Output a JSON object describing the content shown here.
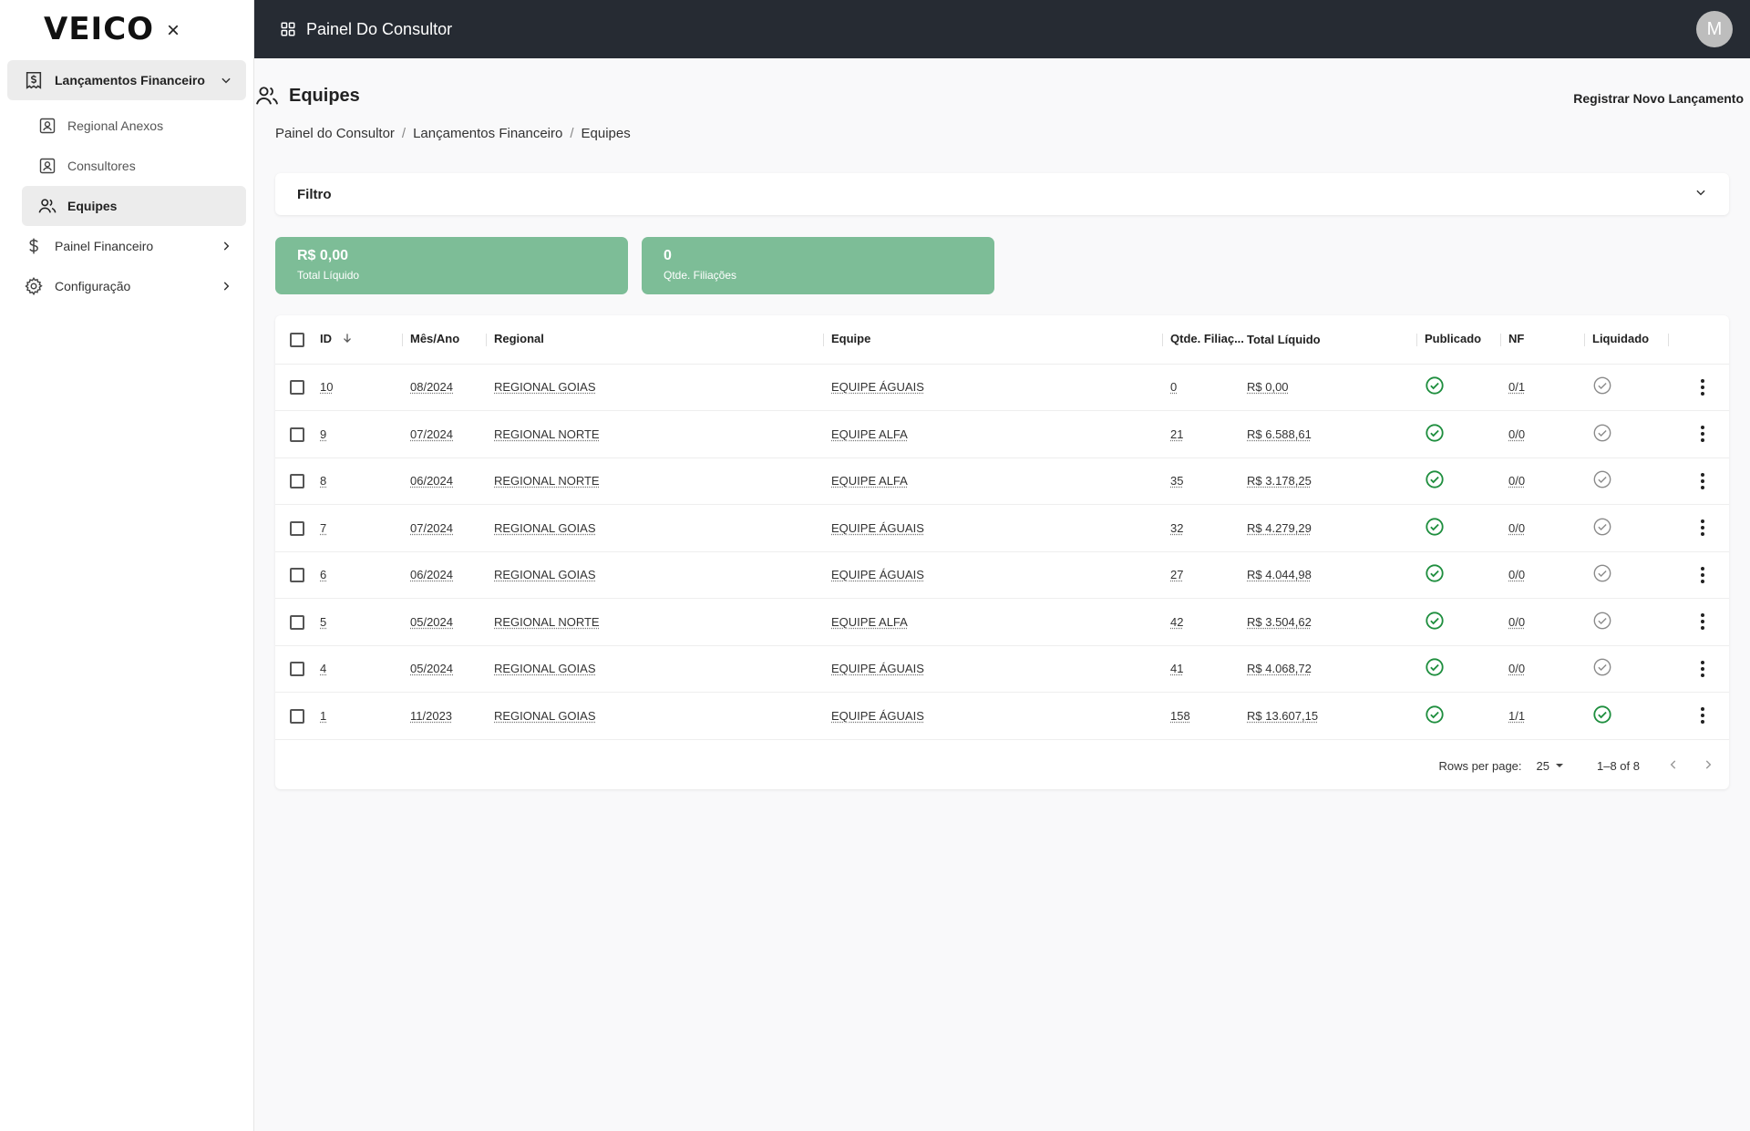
{
  "app": {
    "logo": "VEICO",
    "close_glyph": "×"
  },
  "sidebar": {
    "groups": [
      {
        "label": "Lançamentos Financeiro",
        "icon": "receipt-dollar-icon",
        "open": true,
        "children": [
          {
            "label": "Regional Anexos",
            "icon": "user-card-icon"
          },
          {
            "label": "Consultores",
            "icon": "user-card-icon"
          },
          {
            "label": "Equipes",
            "icon": "users-icon",
            "active": true
          }
        ]
      },
      {
        "label": "Painel Financeiro",
        "icon": "dollar-icon"
      },
      {
        "label": "Configuração",
        "icon": "gear-icon"
      }
    ]
  },
  "topbar": {
    "title": "Painel Do Consultor",
    "avatar_initial": "M"
  },
  "page": {
    "title": "Equipes",
    "action_label": "Registrar Novo Lançamento",
    "breadcrumb": [
      "Painel do Consultor",
      "Lançamentos Financeiro",
      "Equipes"
    ],
    "breadcrumb_sep": "/",
    "filter_label": "Filtro"
  },
  "stats": [
    {
      "value": "R$ 0,00",
      "label": "Total Líquido"
    },
    {
      "value": "0",
      "label": "Qtde. Filiações"
    }
  ],
  "table": {
    "headers": {
      "id": "ID",
      "mes_ano": "Mês/Ano",
      "regional": "Regional",
      "equipe": "Equipe",
      "qtde": "Qtde. Filiaç...",
      "total": "Total Líquido",
      "publicado": "Publicado",
      "nf": "NF",
      "liquidado": "Liquidado"
    },
    "rows": [
      {
        "id": "10",
        "mes_ano": "08/2024",
        "regional": "REGIONAL GOIAS",
        "equipe": "EQUIPE ÁGUAIS",
        "qtde": "0",
        "total": "R$ 0,00",
        "publicado": true,
        "nf": "0/1",
        "liquidado": false
      },
      {
        "id": "9",
        "mes_ano": "07/2024",
        "regional": "REGIONAL NORTE",
        "equipe": "EQUIPE ALFA",
        "qtde": "21",
        "total": "R$ 6.588,61",
        "publicado": true,
        "nf": "0/0",
        "liquidado": false
      },
      {
        "id": "8",
        "mes_ano": "06/2024",
        "regional": "REGIONAL NORTE",
        "equipe": "EQUIPE ALFA",
        "qtde": "35",
        "total": "R$ 3.178,25",
        "publicado": true,
        "nf": "0/0",
        "liquidado": false
      },
      {
        "id": "7",
        "mes_ano": "07/2024",
        "regional": "REGIONAL GOIAS",
        "equipe": "EQUIPE ÁGUAIS",
        "qtde": "32",
        "total": "R$ 4.279,29",
        "publicado": true,
        "nf": "0/0",
        "liquidado": false
      },
      {
        "id": "6",
        "mes_ano": "06/2024",
        "regional": "REGIONAL GOIAS",
        "equipe": "EQUIPE ÁGUAIS",
        "qtde": "27",
        "total": "R$ 4.044,98",
        "publicado": true,
        "nf": "0/0",
        "liquidado": false
      },
      {
        "id": "5",
        "mes_ano": "05/2024",
        "regional": "REGIONAL NORTE",
        "equipe": "EQUIPE ALFA",
        "qtde": "42",
        "total": "R$ 3.504,62",
        "publicado": true,
        "nf": "0/0",
        "liquidado": false
      },
      {
        "id": "4",
        "mes_ano": "05/2024",
        "regional": "REGIONAL GOIAS",
        "equipe": "EQUIPE ÁGUAIS",
        "qtde": "41",
        "total": "R$ 4.068,72",
        "publicado": true,
        "nf": "0/0",
        "liquidado": false
      },
      {
        "id": "1",
        "mes_ano": "11/2023",
        "regional": "REGIONAL GOIAS",
        "equipe": "EQUIPE ÁGUAIS",
        "qtde": "158",
        "total": "R$ 13.607,15",
        "publicado": true,
        "nf": "1/1",
        "liquidado": true
      }
    ],
    "footer": {
      "rows_per_page_label": "Rows per page:",
      "rows_per_page": "25",
      "range": "1–8 of 8"
    }
  },
  "colors": {
    "topbar": "#262b33",
    "stat_card": "#7dbd97",
    "check_on": "#1e8e3e",
    "check_off": "#8a8a8a"
  }
}
